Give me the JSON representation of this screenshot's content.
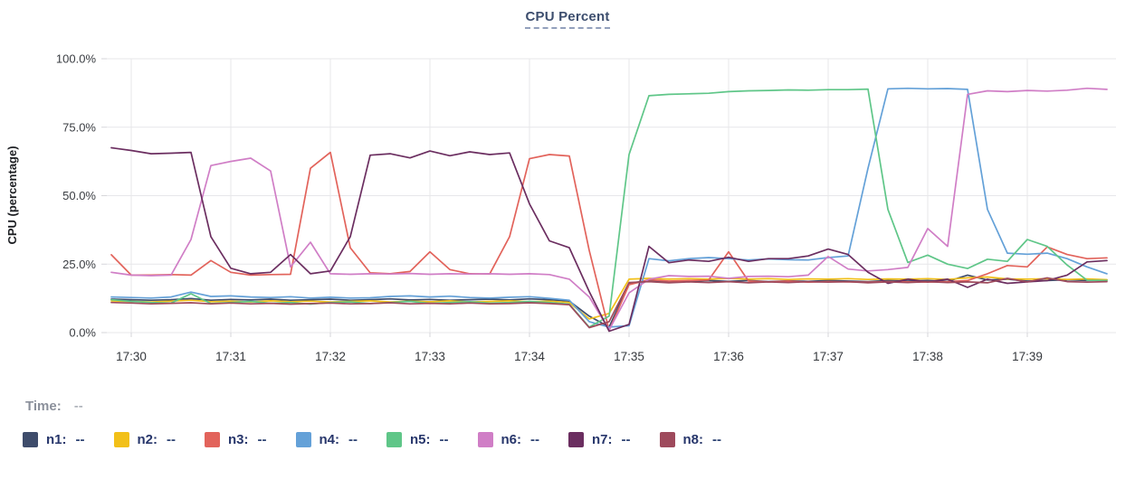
{
  "panel": {
    "title": "CPU Percent"
  },
  "axes": {
    "y_title": "CPU (percentage)",
    "y_ticks": [
      "100.0%",
      "75.0%",
      "50.0%",
      "25.0%",
      "0.0%"
    ],
    "x_ticks": [
      "17:30",
      "17:31",
      "17:32",
      "17:33",
      "17:34",
      "17:35",
      "17:36",
      "17:37",
      "17:38",
      "17:39"
    ]
  },
  "time_row": {
    "label": "Time:",
    "value": "--"
  },
  "legend": [
    {
      "label": "n1:",
      "value": "--",
      "color": "#3e4c6b"
    },
    {
      "label": "n2:",
      "value": "--",
      "color": "#f2c019"
    },
    {
      "label": "n3:",
      "value": "--",
      "color": "#e2635b"
    },
    {
      "label": "n4:",
      "value": "--",
      "color": "#64a1d8"
    },
    {
      "label": "n5:",
      "value": "--",
      "color": "#5fc688"
    },
    {
      "label": "n6:",
      "value": "--",
      "color": "#d07ec6"
    },
    {
      "label": "n7:",
      "value": "--",
      "color": "#6b2e60"
    },
    {
      "label": "n8:",
      "value": "--",
      "color": "#9e4a5c"
    }
  ],
  "chart_data": {
    "type": "line",
    "title": "CPU Percent",
    "ylabel": "CPU (percentage)",
    "ylim": [
      0,
      100
    ],
    "grid": true,
    "legend_position": "bottom",
    "x_unit": "minutes relative to 17:30, sampled every 0.2 min",
    "x_start": -0.2,
    "x_step": 0.2,
    "x_tick_labels": [
      "17:30",
      "17:31",
      "17:32",
      "17:33",
      "17:34",
      "17:35",
      "17:36",
      "17:37",
      "17:38",
      "17:39"
    ],
    "series": [
      {
        "name": "n1",
        "color": "#3e4c6b",
        "values": [
          12.2,
          12.0,
          11.8,
          12.0,
          12.4,
          11.8,
          12.1,
          11.9,
          12.2,
          11.8,
          12.0,
          12.2,
          11.8,
          12.0,
          12.3,
          11.9,
          12.1,
          11.8,
          12.0,
          12.2,
          11.9,
          12.3,
          12.0,
          11.5,
          6.0,
          2.0,
          18.0,
          19.0,
          18.6,
          18.8,
          19.0,
          18.7,
          19.0,
          18.6,
          18.9,
          18.7,
          19.0,
          18.8,
          18.6,
          19.0,
          18.8,
          19.0,
          18.7,
          21.0,
          19.2,
          19.5,
          18.8,
          19.0,
          19.3,
          19.0,
          19.2
        ]
      },
      {
        "name": "n2",
        "color": "#f2c019",
        "values": [
          11.6,
          11.4,
          11.2,
          11.5,
          11.8,
          11.3,
          11.5,
          11.2,
          11.6,
          11.3,
          11.5,
          11.2,
          11.4,
          11.6,
          11.2,
          11.5,
          11.3,
          11.6,
          11.2,
          11.4,
          11.6,
          11.3,
          11.5,
          11.0,
          5.0,
          7.0,
          19.5,
          19.8,
          19.5,
          19.7,
          19.5,
          19.8,
          19.5,
          19.7,
          19.4,
          19.6,
          19.5,
          19.7,
          19.4,
          19.6,
          19.5,
          19.7,
          19.4,
          20.0,
          20.3,
          19.6,
          19.5,
          19.7,
          19.4,
          19.6,
          19.3
        ]
      },
      {
        "name": "n3",
        "color": "#e2635b",
        "values": [
          28.4,
          21.0,
          21.0,
          21.2,
          21.0,
          26.3,
          22.0,
          21.0,
          21.2,
          21.3,
          60.0,
          65.8,
          31.0,
          21.8,
          21.5,
          22.3,
          29.5,
          23.0,
          21.5,
          21.4,
          35.0,
          63.5,
          65.0,
          64.5,
          30.0,
          0.8,
          17.5,
          19.3,
          18.8,
          19.0,
          19.2,
          29.5,
          18.8,
          18.5,
          18.8,
          18.4,
          18.6,
          18.5,
          18.4,
          18.6,
          18.5,
          18.4,
          18.6,
          19.0,
          21.5,
          24.5,
          24.0,
          31.3,
          28.5,
          27.0,
          27.3
        ]
      },
      {
        "name": "n4",
        "color": "#64a1d8",
        "values": [
          13.0,
          12.8,
          12.6,
          13.0,
          14.8,
          13.2,
          13.4,
          13.0,
          12.8,
          13.1,
          12.6,
          12.9,
          12.6,
          12.7,
          13.2,
          13.4,
          13.0,
          13.3,
          12.8,
          12.6,
          12.9,
          13.1,
          12.5,
          11.8,
          4.0,
          2.0,
          2.5,
          27.0,
          26.2,
          27.0,
          27.4,
          27.0,
          26.5,
          26.9,
          26.6,
          26.5,
          27.4,
          28.0,
          60.0,
          89.0,
          89.2,
          89.0,
          89.1,
          88.8,
          45.0,
          29.0,
          28.6,
          29.0,
          27.0,
          24.0,
          21.5
        ]
      },
      {
        "name": "n5",
        "color": "#5fc688",
        "values": [
          12.0,
          11.4,
          11.0,
          10.8,
          14.2,
          10.6,
          11.0,
          11.4,
          10.7,
          11.0,
          10.4,
          11.0,
          11.2,
          10.6,
          11.0,
          11.4,
          10.7,
          11.0,
          11.3,
          10.8,
          11.0,
          11.4,
          11.0,
          10.4,
          2.0,
          6.0,
          65.0,
          86.5,
          87.0,
          87.2,
          87.4,
          88.0,
          88.3,
          88.4,
          88.6,
          88.5,
          88.7,
          88.7,
          88.9,
          45.0,
          25.6,
          28.3,
          25.0,
          23.4,
          26.8,
          26.0,
          34.0,
          31.5,
          24.7,
          19.1,
          19.0
        ]
      },
      {
        "name": "n6",
        "color": "#d07ec6",
        "values": [
          22.0,
          21.0,
          20.8,
          21.0,
          34.0,
          61.0,
          62.5,
          63.7,
          59.0,
          24.0,
          33.0,
          21.5,
          21.3,
          21.5,
          21.4,
          21.6,
          21.3,
          21.5,
          21.4,
          21.5,
          21.3,
          21.5,
          21.2,
          19.5,
          13.0,
          1.0,
          14.5,
          19.5,
          20.8,
          20.5,
          20.6,
          19.8,
          20.5,
          20.6,
          20.4,
          21.0,
          27.8,
          23.2,
          22.5,
          23.0,
          23.8,
          38.0,
          31.5,
          87.0,
          88.3,
          88.0,
          88.4,
          88.2,
          88.5,
          89.2,
          88.8
        ]
      },
      {
        "name": "n7",
        "color": "#6b2e60",
        "values": [
          67.5,
          66.5,
          65.3,
          65.5,
          65.8,
          35.0,
          23.5,
          21.5,
          22.0,
          28.5,
          21.5,
          22.5,
          35.0,
          64.8,
          65.3,
          63.8,
          66.3,
          64.6,
          66.0,
          65.0,
          65.6,
          47.0,
          33.5,
          31.0,
          15.0,
          0.5,
          3.0,
          31.5,
          25.5,
          26.5,
          26.0,
          27.5,
          26.0,
          27.0,
          27.0,
          28.0,
          30.5,
          28.5,
          22.0,
          18.0,
          19.5,
          18.5,
          19.5,
          16.5,
          19.5,
          18.0,
          18.5,
          19.0,
          21.0,
          25.8,
          26.3
        ]
      },
      {
        "name": "n8",
        "color": "#9e4a5c",
        "values": [
          11.0,
          10.8,
          10.5,
          10.7,
          10.9,
          10.5,
          10.8,
          10.5,
          10.7,
          10.4,
          10.6,
          10.8,
          10.5,
          10.6,
          10.9,
          10.5,
          10.7,
          10.5,
          10.8,
          10.5,
          10.6,
          10.9,
          10.6,
          10.2,
          1.8,
          4.0,
          18.3,
          18.6,
          18.2,
          18.5,
          18.3,
          18.6,
          18.2,
          18.5,
          18.3,
          18.6,
          18.4,
          18.6,
          18.2,
          18.5,
          18.3,
          18.6,
          18.3,
          18.5,
          18.2,
          19.8,
          18.5,
          20.0,
          18.6,
          18.4,
          18.6
        ]
      }
    ]
  }
}
